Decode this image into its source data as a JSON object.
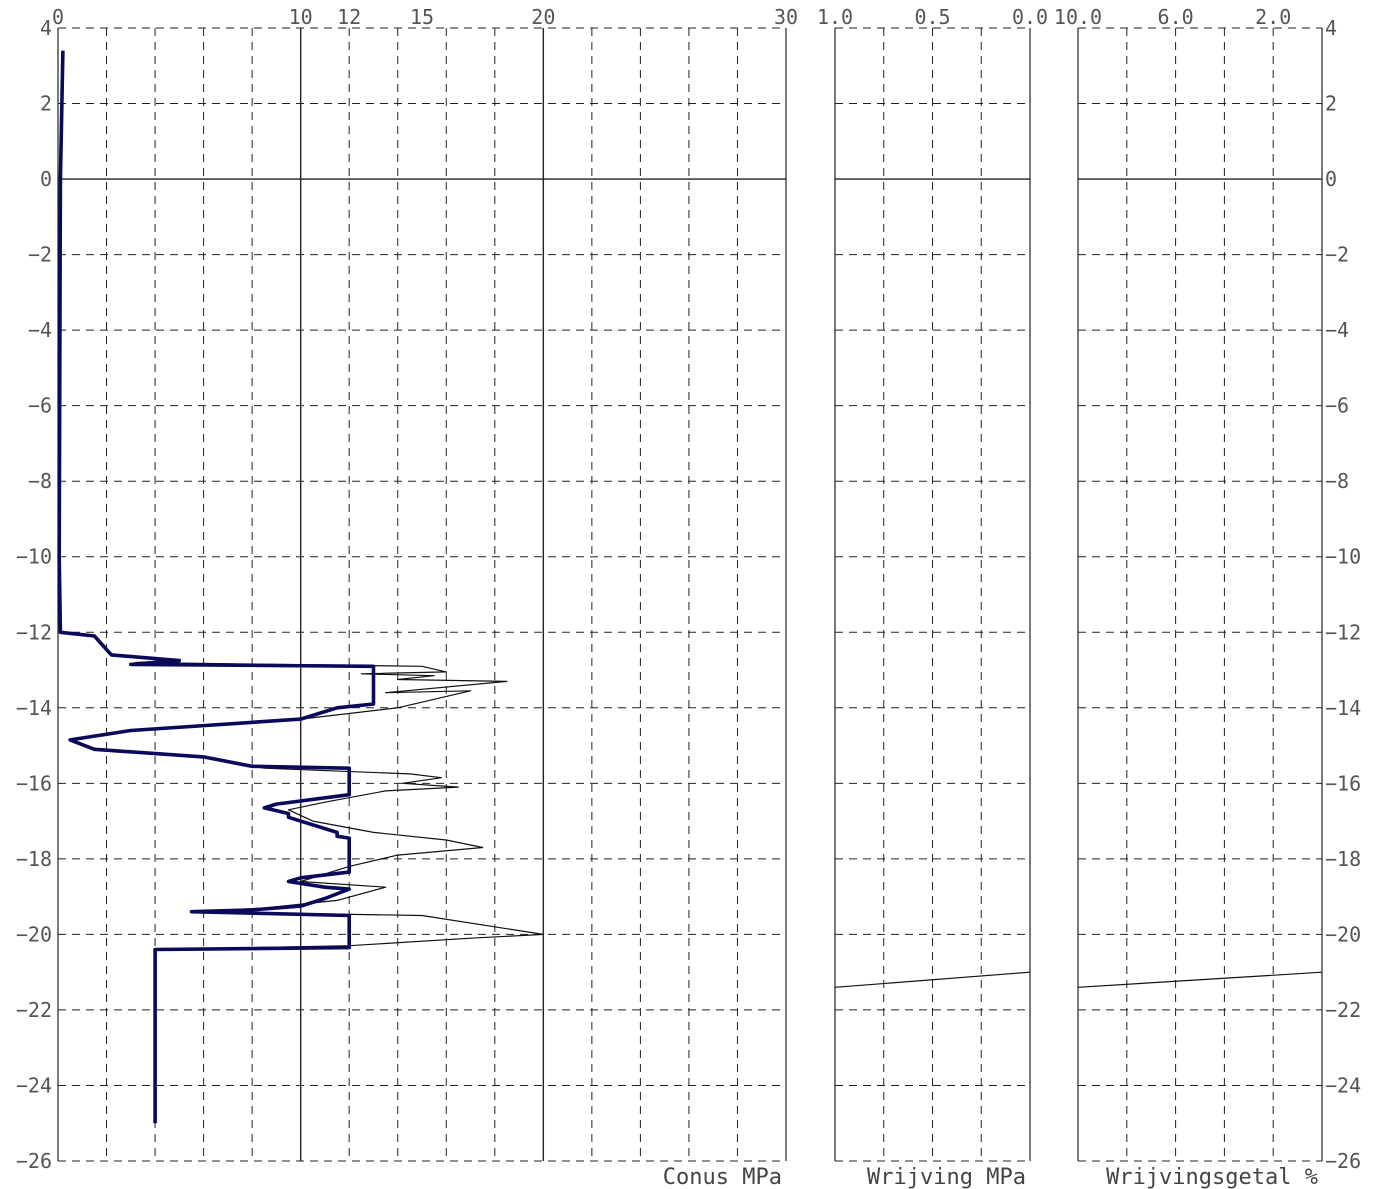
{
  "chart_data": {
    "type": "line",
    "colors": {
      "grid": "#222222",
      "primary": "#0a0a5a",
      "secondary": "#111111"
    },
    "depth_axis": {
      "ylim": [
        -26,
        4
      ],
      "ticks": [
        4,
        2,
        0,
        -2,
        -4,
        -6,
        -8,
        -10,
        -12,
        -14,
        -16,
        -18,
        -20,
        -22,
        -24,
        -26
      ]
    },
    "panels": [
      {
        "id": "conus",
        "xlabel": "Conus MPa",
        "xlim": [
          0,
          30
        ],
        "tick_labels": [
          {
            "value": 0,
            "text": "0"
          },
          {
            "value": 10,
            "text": "10"
          },
          {
            "value": 12,
            "text": "12"
          },
          {
            "value": 15,
            "text": "15"
          },
          {
            "value": 20,
            "text": "20"
          },
          {
            "value": 30,
            "text": "30"
          }
        ],
        "grid_dashed_x": [
          2,
          4,
          6,
          8,
          12,
          14,
          16,
          18,
          22,
          24,
          26,
          28
        ],
        "grid_solid_x": [
          10,
          20
        ],
        "series": [
          {
            "role": "raw-thin",
            "points": [
              [
                0.2,
                3.4
              ],
              [
                0.1,
                0
              ],
              [
                0.05,
                -10
              ],
              [
                0.1,
                -12
              ],
              [
                1.5,
                -12.1
              ],
              [
                2.2,
                -12.6
              ],
              [
                5,
                -12.75
              ],
              [
                3.2,
                -12.8
              ],
              [
                15,
                -12.9
              ],
              [
                16,
                -13.05
              ],
              [
                12.5,
                -13.1
              ],
              [
                15.5,
                -13.15
              ],
              [
                14,
                -13.25
              ],
              [
                18.5,
                -13.3
              ],
              [
                13.5,
                -13.6
              ],
              [
                17,
                -13.55
              ],
              [
                14,
                -14
              ],
              [
                10,
                -14.3
              ],
              [
                3,
                -14.6
              ],
              [
                0.5,
                -14.85
              ],
              [
                1.5,
                -15.1
              ],
              [
                6,
                -15.3
              ],
              [
                8.5,
                -15.6
              ],
              [
                14.5,
                -15.75
              ],
              [
                15.8,
                -15.85
              ],
              [
                14.2,
                -16
              ],
              [
                16.5,
                -16.1
              ],
              [
                13.5,
                -16.2
              ],
              [
                11,
                -16.5
              ],
              [
                9.5,
                -16.7
              ],
              [
                10.5,
                -17
              ],
              [
                13,
                -17.3
              ],
              [
                16,
                -17.5
              ],
              [
                17.5,
                -17.7
              ],
              [
                14,
                -17.9
              ],
              [
                12,
                -18.2
              ],
              [
                10,
                -18.6
              ],
              [
                13.5,
                -18.75
              ],
              [
                11.5,
                -19.1
              ],
              [
                8.5,
                -19.3
              ],
              [
                5.5,
                -19.4
              ],
              [
                15,
                -19.5
              ],
              [
                20,
                -20
              ],
              [
                17,
                -20.1
              ],
              [
                12,
                -20.3
              ],
              [
                4,
                -20.4
              ],
              [
                4,
                -25
              ]
            ]
          },
          {
            "role": "corrected-bold",
            "points": [
              [
                0.2,
                3.4
              ],
              [
                0.1,
                0
              ],
              [
                0.05,
                -10
              ],
              [
                0.1,
                -12
              ],
              [
                1.5,
                -12.1
              ],
              [
                2.2,
                -12.6
              ],
              [
                5,
                -12.75
              ],
              [
                3,
                -12.85
              ],
              [
                13,
                -12.9
              ],
              [
                13,
                -13.9
              ],
              [
                11.5,
                -14
              ],
              [
                10,
                -14.3
              ],
              [
                3,
                -14.6
              ],
              [
                0.5,
                -14.85
              ],
              [
                1.5,
                -15.1
              ],
              [
                6,
                -15.3
              ],
              [
                8,
                -15.55
              ],
              [
                12,
                -15.6
              ],
              [
                12,
                -16.3
              ],
              [
                9,
                -16.55
              ],
              [
                8.5,
                -16.65
              ],
              [
                9.5,
                -16.8
              ],
              [
                9.5,
                -16.9
              ],
              [
                11.5,
                -17.3
              ],
              [
                11.5,
                -17.4
              ],
              [
                12,
                -17.45
              ],
              [
                12,
                -18.35
              ],
              [
                10,
                -18.5
              ],
              [
                9.5,
                -18.6
              ],
              [
                11,
                -18.75
              ],
              [
                12,
                -18.8
              ],
              [
                11,
                -19.05
              ],
              [
                10,
                -19.25
              ],
              [
                8,
                -19.35
              ],
              [
                5.5,
                -19.4
              ],
              [
                12,
                -19.5
              ],
              [
                12,
                -20.35
              ],
              [
                4,
                -20.4
              ],
              [
                4,
                -25
              ]
            ]
          }
        ]
      },
      {
        "id": "wrijving",
        "xlabel": "Wrijving MPa",
        "xlim": [
          1.0,
          0.0
        ],
        "tick_labels": [
          {
            "value": 1.0,
            "text": "1.0"
          },
          {
            "value": 0.5,
            "text": "0.5"
          },
          {
            "value": 0.0,
            "text": "0.0"
          }
        ],
        "grid_dashed_x": [
          0.75,
          0.5,
          0.25
        ],
        "grid_solid_x": [],
        "series": [
          {
            "role": "bottom-line",
            "points": [
              [
                1.0,
                -21.4
              ],
              [
                0.0,
                -21
              ]
            ]
          }
        ]
      },
      {
        "id": "wrijvingsgetal",
        "xlabel": "Wrijvingsgetal %",
        "xlim": [
          10.0,
          0.0
        ],
        "tick_labels": [
          {
            "value": 10.0,
            "text": "10.0"
          },
          {
            "value": 6.0,
            "text": "6.0"
          },
          {
            "value": 2.0,
            "text": "2.0"
          }
        ],
        "grid_dashed_x": [
          8,
          6,
          4,
          2
        ],
        "grid_solid_x": [],
        "series": [
          {
            "role": "bottom-line",
            "points": [
              [
                10.0,
                -21.4
              ],
              [
                0.0,
                -21
              ]
            ]
          }
        ]
      }
    ]
  }
}
